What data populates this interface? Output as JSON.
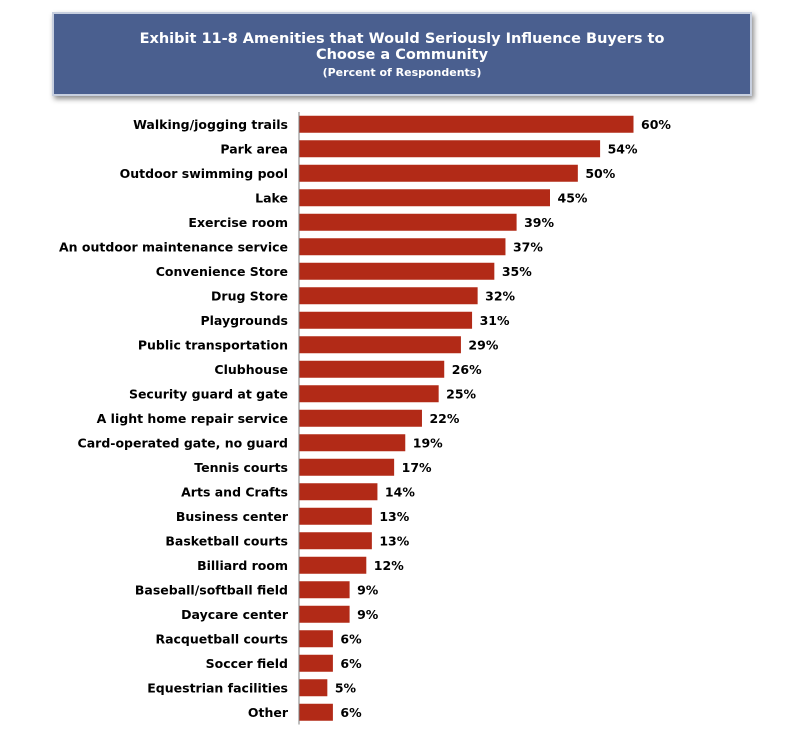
{
  "colors": {
    "header_bg": "#4a5f8f",
    "bar": "#b22a17",
    "axis": "#7f7f7f"
  },
  "chart_data": {
    "type": "bar",
    "orientation": "horizontal",
    "title": "Exhibit 11-8  Amenities that Would Seriously Influence Buyers to Choose a Community",
    "subtitle": "(Percent of Respondents)",
    "xlabel": "",
    "ylabel": "",
    "value_suffix": "%",
    "xlim": [
      0,
      60
    ],
    "grid": false,
    "legend": "none",
    "categories": [
      "Walking/jogging trails",
      "Park area",
      "Outdoor swimming pool",
      "Lake",
      "Exercise room",
      "An outdoor maintenance service",
      "Convenience Store",
      "Drug Store",
      "Playgrounds",
      "Public transportation",
      "Clubhouse",
      "Security guard at gate",
      "A light home repair service",
      "Card-operated gate, no guard",
      "Tennis courts",
      "Arts and Crafts",
      "Business center",
      "Basketball courts",
      "Billiard room",
      "Baseball/softball field",
      "Daycare center",
      "Racquetball courts",
      "Soccer field",
      "Equestrian facilities",
      "Other"
    ],
    "values": [
      60,
      54,
      50,
      45,
      39,
      37,
      35,
      32,
      31,
      29,
      26,
      25,
      22,
      19,
      17,
      14,
      13,
      13,
      12,
      9,
      9,
      6,
      6,
      5,
      6
    ]
  }
}
